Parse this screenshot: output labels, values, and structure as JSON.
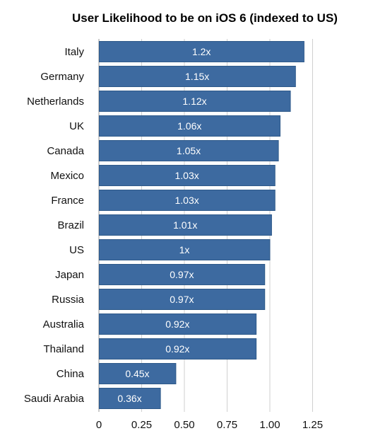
{
  "chart_data": {
    "type": "bar",
    "orientation": "horizontal",
    "title": "User Likelihood to be on iOS 6 (indexed to US)",
    "xlabel": "",
    "ylabel": "",
    "categories": [
      "Italy",
      "Germany",
      "Netherlands",
      "UK",
      "Canada",
      "Mexico",
      "France",
      "Brazil",
      "US",
      "Japan",
      "Russia",
      "Australia",
      "Thailand",
      "China",
      "Saudi Arabia"
    ],
    "values": [
      1.2,
      1.15,
      1.12,
      1.06,
      1.05,
      1.03,
      1.03,
      1.01,
      1.0,
      0.97,
      0.97,
      0.92,
      0.92,
      0.45,
      0.36
    ],
    "data_labels": [
      "1.2x",
      "1.15x",
      "1.12x",
      "1.06x",
      "1.05x",
      "1.03x",
      "1.03x",
      "1.01x",
      "1x",
      "0.97x",
      "0.97x",
      "0.92x",
      "0.92x",
      "0.45x",
      "0.36x"
    ],
    "xticks": [
      0,
      0.25,
      0.5,
      0.75,
      1.0,
      1.25
    ],
    "xtick_labels": [
      "0",
      "0.25",
      "0.50",
      "0.75",
      "1.00",
      "1.25"
    ],
    "xlim": [
      0,
      1.25
    ],
    "grid": true,
    "legend": "none",
    "colors": {
      "bar": "#3d6aa0",
      "grid": "#cfcfcf",
      "label_text": "#ffffff"
    }
  }
}
